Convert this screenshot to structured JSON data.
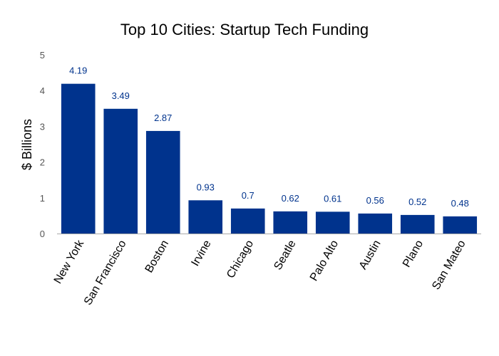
{
  "chart_data": {
    "type": "bar",
    "title": "Top 10 Cities: Startup Tech Funding",
    "xlabel": "",
    "ylabel": "$ Billions",
    "ylim": [
      0,
      5
    ],
    "yticks": [
      "0",
      "1",
      "2",
      "3",
      "4",
      "5"
    ],
    "grid": false,
    "legend": "none",
    "categories": [
      "New York",
      "San Francisco",
      "Boston",
      "Irvine",
      "Chicago",
      "Seatle",
      "Palo Alto",
      "Austin",
      "Plano",
      "San Mateo"
    ],
    "values": [
      4.19,
      3.49,
      2.87,
      0.93,
      0.7,
      0.62,
      0.61,
      0.56,
      0.52,
      0.48
    ],
    "value_labels": [
      "4.19",
      "3.49",
      "2.87",
      "0.93",
      "0.7",
      "0.62",
      "0.61",
      "0.56",
      "0.52",
      "0.48"
    ]
  },
  "colors": {
    "bar": "#00338d",
    "value_label": "#00338d",
    "axis": "#aaaaaa"
  }
}
